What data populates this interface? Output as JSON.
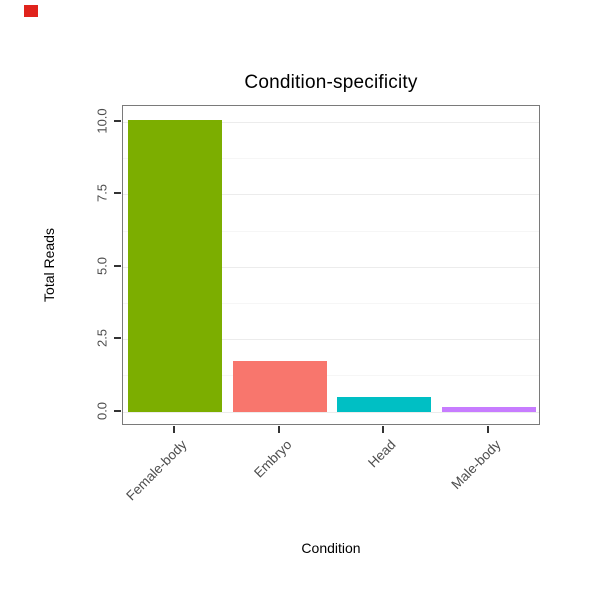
{
  "title": "Condition-specificity",
  "decorations": {
    "corner_mark_color": "#e0231c"
  },
  "chart_data": {
    "type": "bar",
    "title": "Condition-specificity",
    "xlabel": "Condition",
    "ylabel": "Total Reads",
    "categories": [
      "Female-body",
      "Embryo",
      "Head",
      "Male-body"
    ],
    "values": [
      10.05,
      1.75,
      0.5,
      0.15
    ],
    "colors": [
      "#7CAE00",
      "#F8766D",
      "#00BFC4",
      "#C77CFF"
    ],
    "ytick_labels": [
      "0.0",
      "2.5",
      "5.0",
      "7.5",
      "10.0"
    ],
    "ytick_values": [
      0,
      2.5,
      5,
      7.5,
      10
    ],
    "ylim": [
      -0.5,
      10.55
    ],
    "grid": true,
    "legend": "none",
    "bar_width_fraction": 0.9
  }
}
